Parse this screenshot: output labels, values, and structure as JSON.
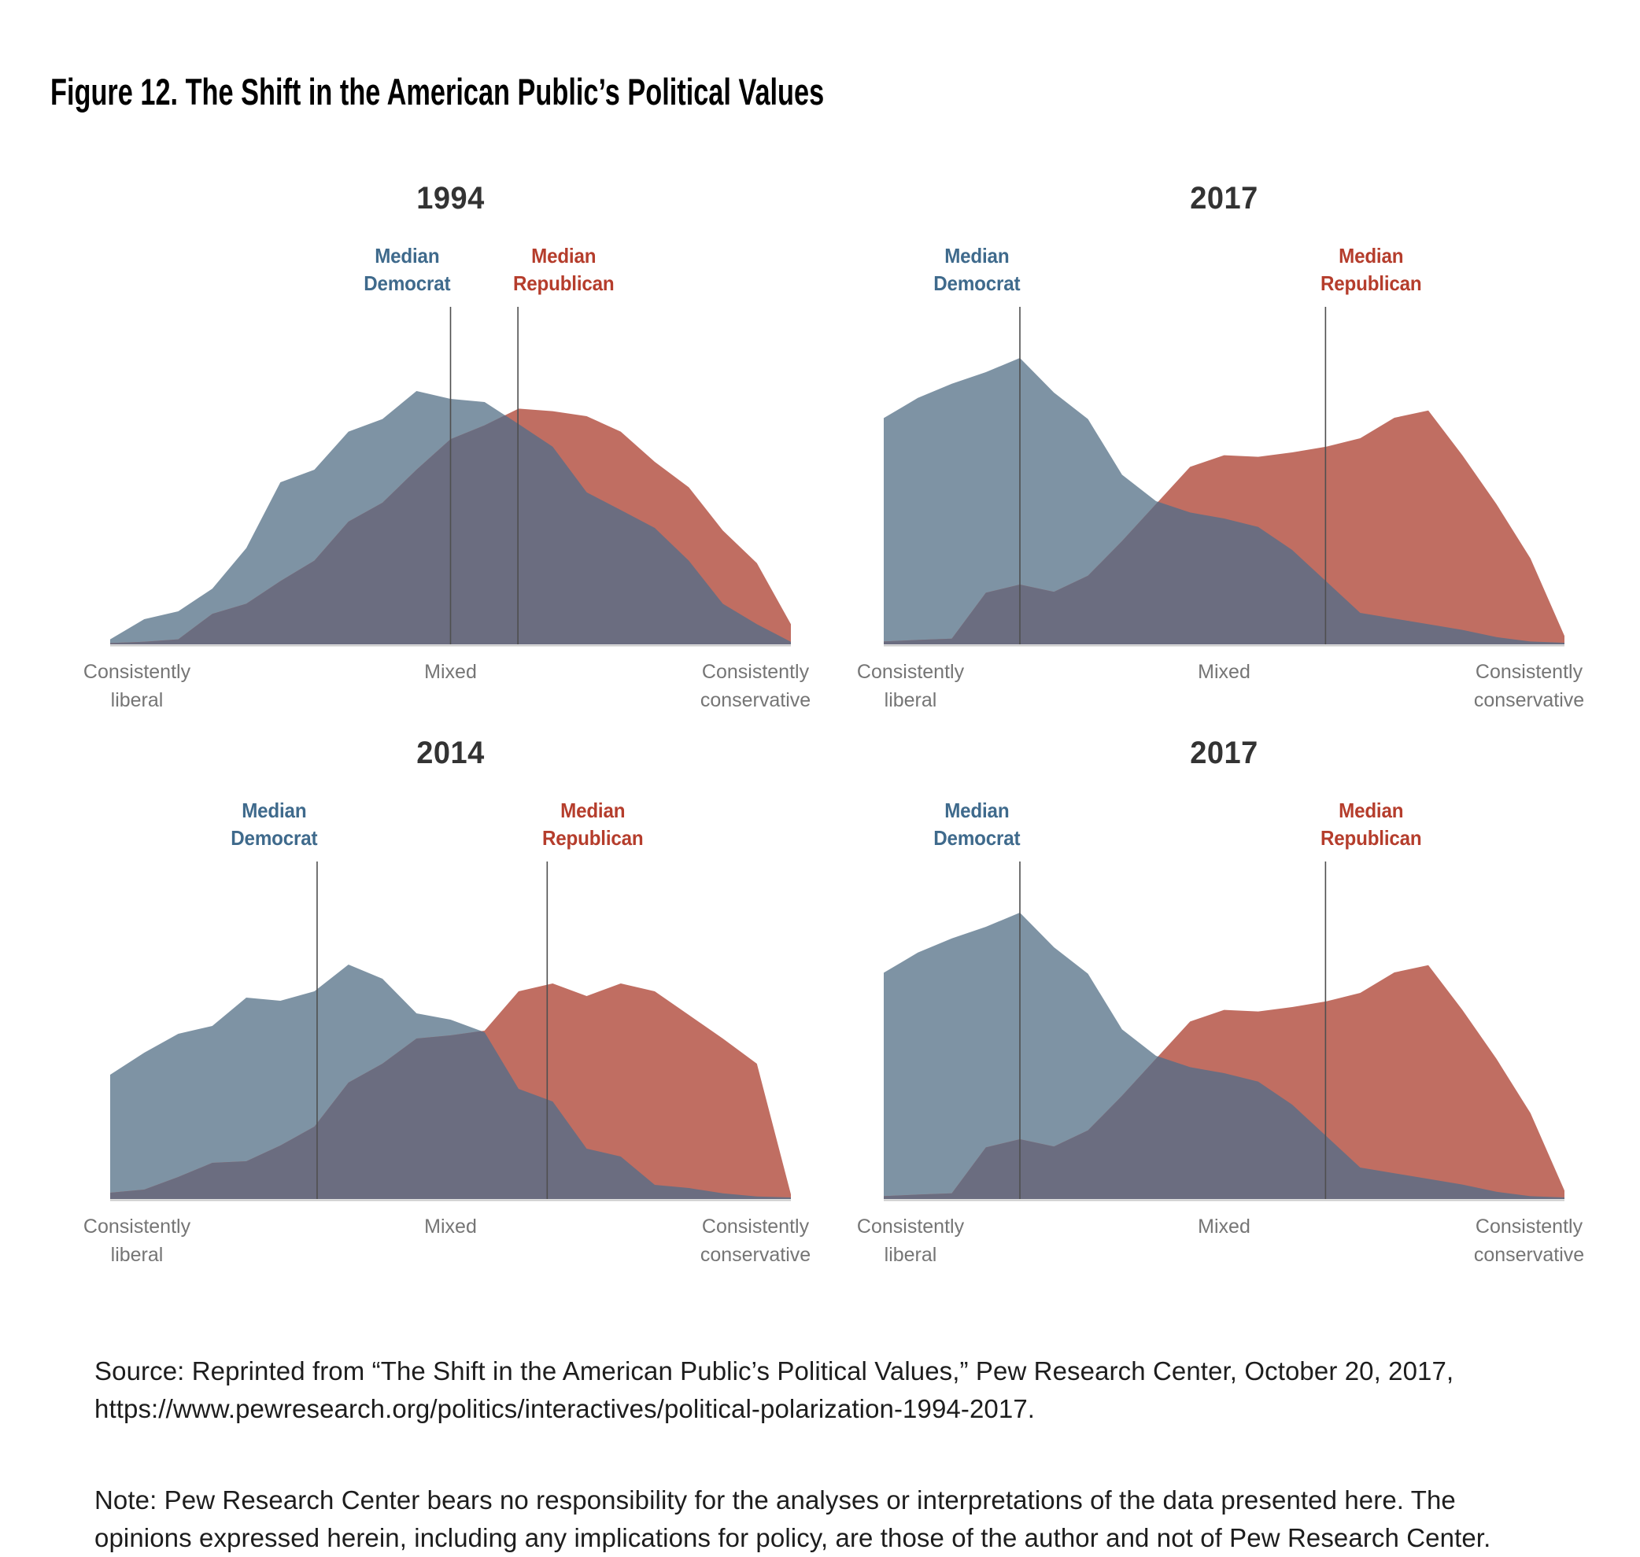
{
  "page": {
    "title": "Figure 12. The Shift in the American Public’s Political Values",
    "source": "Source: Reprinted from “The Shift in the American Public’s Political Values,” Pew Research Center, October 20, 2017,\nhttps://www.pewresearch.org/politics/interactives/political-polarization-1994-2017.",
    "note": "Note: Pew Research Center bears no responsibility for the analyses or interpretations of the data presented here. The\nopinions expressed herein, including any implications for policy, are those of the author and not of Pew Research Center."
  },
  "labels": {
    "median_democrat": "Median\nDemocrat",
    "median_republican": "Median\nRepublican",
    "axis_left": "Consistently\nliberal",
    "axis_center": "Mixed",
    "axis_right": "Consistently\nconservative"
  },
  "colors": {
    "democrat_fill": "#7e93a4",
    "republican_fill": "#c06e62",
    "overlap_fill": "#6b6d80",
    "democrat_label": "#3f6a8c",
    "republican_label": "#b53d2c",
    "axis_label": "#757575",
    "median_line": "#4f4f4f",
    "baseline": "#c9c9c9"
  },
  "chart_data": [
    {
      "type": "area",
      "title": "1994",
      "x_axis_note": "ideology scale, 21 evenly spaced points from Consistently liberal (0) to Consistently conservative (1); no y-axis shown",
      "y_unit": "area height as % of plot height (400px)",
      "median_democrat_frac": 0.5,
      "median_republican_frac": 0.599,
      "series": [
        {
          "name": "Democrats",
          "values": [
            1.6,
            8,
            10.5,
            17.7,
            30.6,
            51.5,
            55.5,
            67.6,
            71.6,
            80.5,
            78,
            77,
            70,
            62.8,
            48.3,
            42.7,
            37,
            26.6,
            12.9,
            6.4,
            0.8
          ]
        },
        {
          "name": "Republicans",
          "values": [
            0.4,
            0.8,
            1.6,
            9.7,
            12.9,
            20.1,
            26.6,
            39,
            45,
            55.5,
            65.2,
            69.6,
            74.9,
            74.1,
            72.5,
            67.6,
            58,
            49.9,
            36.2,
            25.8,
            6.4
          ]
        }
      ]
    },
    {
      "type": "area",
      "title": "2017",
      "x_axis_note": "ideology scale, 21 evenly spaced points from Consistently liberal (0) to Consistently conservative (1); no y-axis shown",
      "y_unit": "area height as % of plot height (400px)",
      "median_democrat_frac": 0.2,
      "median_republican_frac": 0.649,
      "series": [
        {
          "name": "Democrats",
          "values": [
            71.9,
            78.3,
            82.8,
            86.5,
            91,
            80,
            71.6,
            53.9,
            45.5,
            41.9,
            40,
            37.3,
            30,
            20,
            10,
            8.2,
            6.4,
            4.6,
            2.3,
            0.9,
            0.5
          ]
        },
        {
          "name": "Republicans",
          "values": [
            0.9,
            1.4,
            1.8,
            16.4,
            19,
            16.7,
            21.8,
            32.8,
            44.6,
            56.4,
            60.1,
            59.6,
            61,
            62.8,
            65.5,
            72,
            74.3,
            60.1,
            44.6,
            27.3,
            2.7
          ]
        }
      ]
    },
    {
      "type": "area",
      "title": "2014",
      "x_axis_note": "ideology scale, 21 evenly spaced points from Consistently liberal (0) to Consistently conservative (1); no y-axis shown",
      "y_unit": "area height as % of plot height (400px)",
      "median_democrat_frac": 0.304,
      "median_republican_frac": 0.642,
      "series": [
        {
          "name": "Democrats",
          "values": [
            39.5,
            46.5,
            52.5,
            55,
            64,
            63,
            66,
            74.5,
            70,
            59,
            57,
            53,
            35,
            31,
            16,
            13.5,
            4.5,
            3.5,
            1.8,
            0.8,
            0.5
          ]
        },
        {
          "name": "Republicans",
          "values": [
            2,
            3,
            7,
            11.5,
            12,
            17,
            23,
            37,
            43,
            51,
            52,
            53.5,
            66,
            68.5,
            64.5,
            68.5,
            66,
            58.5,
            51,
            43,
            1.5
          ]
        }
      ]
    },
    {
      "type": "area",
      "title": "2017",
      "x_axis_note": "ideology scale, 21 evenly spaced points from Consistently liberal (0) to Consistently conservative (1); no y-axis shown",
      "y_unit": "area height as % of plot height (400px)",
      "median_democrat_frac": 0.2,
      "median_republican_frac": 0.649,
      "series": [
        {
          "name": "Democrats",
          "values": [
            71.9,
            78.3,
            82.8,
            86.5,
            91,
            80,
            71.6,
            53.9,
            45.5,
            41.9,
            40,
            37.3,
            30,
            20,
            10,
            8.2,
            6.4,
            4.6,
            2.3,
            0.9,
            0.5
          ]
        },
        {
          "name": "Republicans",
          "values": [
            0.9,
            1.4,
            1.8,
            16.4,
            19,
            16.7,
            21.8,
            32.8,
            44.6,
            56.4,
            60.1,
            59.6,
            61,
            62.8,
            65.5,
            72,
            74.3,
            60.1,
            44.6,
            27.3,
            2.7
          ]
        }
      ]
    }
  ]
}
